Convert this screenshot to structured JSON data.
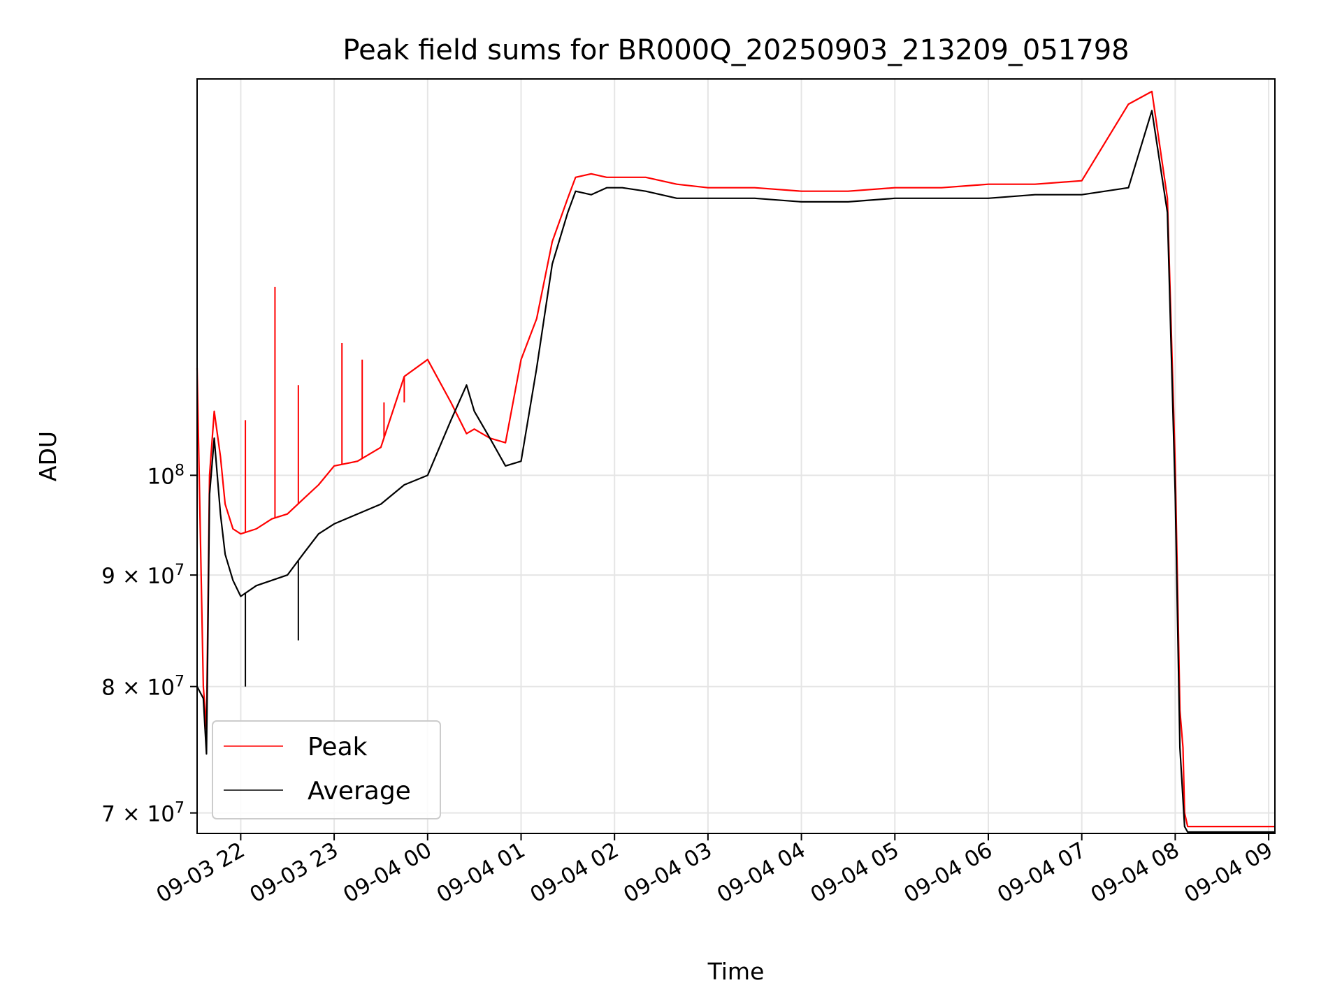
{
  "chart_data": {
    "type": "line",
    "title": "Peak field sums for BR000Q_20250903_213209_051798",
    "xlabel": "Time",
    "ylabel": "ADU",
    "y_scale": "log",
    "ylim": [
      68500000,
      152000000
    ],
    "xlim": [
      "2025-09-03 21:32",
      "2025-09-04 09:04"
    ],
    "grid": true,
    "legend_position": "lower-left",
    "x_tick_labels": [
      "09-03 22",
      "09-03 23",
      "09-04 00",
      "09-04 01",
      "09-04 02",
      "09-04 03",
      "09-04 04",
      "09-04 05",
      "09-04 06",
      "09-04 07",
      "09-04 08",
      "09-04 09"
    ],
    "x_ticks": [
      "2025-09-03 22:00",
      "2025-09-03 23:00",
      "2025-09-04 00:00",
      "2025-09-04 01:00",
      "2025-09-04 02:00",
      "2025-09-04 03:00",
      "2025-09-04 04:00",
      "2025-09-04 05:00",
      "2025-09-04 06:00",
      "2025-09-04 07:00",
      "2025-09-04 08:00",
      "2025-09-04 09:00"
    ],
    "y_ticks": [
      {
        "value": 70000000,
        "base": "7 × 10",
        "exp": "7"
      },
      {
        "value": 80000000,
        "base": "8 × 10",
        "exp": "7"
      },
      {
        "value": 90000000,
        "base": "9 × 10",
        "exp": "7"
      },
      {
        "value": 100000000,
        "base": "10",
        "exp": "8"
      }
    ],
    "series": [
      {
        "name": "Peak",
        "color": "#ff0000",
        "x": [
          "2025-09-03 21:32",
          "2025-09-03 21:36",
          "2025-09-03 21:38",
          "2025-09-03 21:40",
          "2025-09-03 21:43",
          "2025-09-03 21:47",
          "2025-09-03 21:50",
          "2025-09-03 21:55",
          "2025-09-03 22:00",
          "2025-09-03 22:10",
          "2025-09-03 22:20",
          "2025-09-03 22:30",
          "2025-09-03 22:40",
          "2025-09-03 22:50",
          "2025-09-03 23:00",
          "2025-09-03 23:15",
          "2025-09-03 23:30",
          "2025-09-03 23:45",
          "2025-09-04 00:00",
          "2025-09-04 00:15",
          "2025-09-04 00:25",
          "2025-09-04 00:30",
          "2025-09-04 00:40",
          "2025-09-04 00:50",
          "2025-09-04 01:00",
          "2025-09-04 01:10",
          "2025-09-04 01:20",
          "2025-09-04 01:30",
          "2025-09-04 01:35",
          "2025-09-04 01:45",
          "2025-09-04 01:55",
          "2025-09-04 02:05",
          "2025-09-04 02:20",
          "2025-09-04 02:40",
          "2025-09-04 03:00",
          "2025-09-04 03:30",
          "2025-09-04 04:00",
          "2025-09-04 04:30",
          "2025-09-04 05:00",
          "2025-09-04 05:30",
          "2025-09-04 06:00",
          "2025-09-04 06:30",
          "2025-09-04 07:00",
          "2025-09-04 07:30",
          "2025-09-04 07:45",
          "2025-09-04 07:55",
          "2025-09-04 08:00",
          "2025-09-04 08:03",
          "2025-09-04 08:05",
          "2025-09-04 08:06",
          "2025-09-04 08:08",
          "2025-09-04 09:02",
          "2025-09-04 09:04"
        ],
        "y": [
          112000000,
          80000000,
          76500000,
          100000000,
          107000000,
          102000000,
          97000000,
          94500000,
          94000000,
          94500000,
          95500000,
          96000000,
          97500000,
          99000000,
          101000000,
          101500000,
          103000000,
          111000000,
          113000000,
          108000000,
          104500000,
          105000000,
          104000000,
          103500000,
          113000000,
          118000000,
          128000000,
          134000000,
          137000000,
          137500000,
          137000000,
          137000000,
          137000000,
          136000000,
          135500000,
          135500000,
          135000000,
          135000000,
          135500000,
          135500000,
          136000000,
          136000000,
          136500000,
          148000000,
          150000000,
          134000000,
          101000000,
          78000000,
          75000000,
          70000000,
          69000000,
          69000000,
          69000000
        ],
        "spikes": [
          {
            "x": "2025-09-03 22:03",
            "y": 106000000
          },
          {
            "x": "2025-09-03 22:22",
            "y": 122000000
          },
          {
            "x": "2025-09-03 22:37",
            "y": 110000000
          },
          {
            "x": "2025-09-03 23:05",
            "y": 115000000
          },
          {
            "x": "2025-09-03 23:18",
            "y": 113000000
          },
          {
            "x": "2025-09-03 23:32",
            "y": 108000000
          },
          {
            "x": "2025-09-03 23:45",
            "y": 108000000
          }
        ]
      },
      {
        "name": "Average",
        "color": "#000000",
        "x": [
          "2025-09-03 21:32",
          "2025-09-03 21:36",
          "2025-09-03 21:38",
          "2025-09-03 21:40",
          "2025-09-03 21:43",
          "2025-09-03 21:47",
          "2025-09-03 21:50",
          "2025-09-03 21:55",
          "2025-09-03 22:00",
          "2025-09-03 22:10",
          "2025-09-03 22:20",
          "2025-09-03 22:30",
          "2025-09-03 22:40",
          "2025-09-03 22:50",
          "2025-09-03 23:00",
          "2025-09-03 23:15",
          "2025-09-03 23:30",
          "2025-09-03 23:45",
          "2025-09-04 00:00",
          "2025-09-04 00:15",
          "2025-09-04 00:25",
          "2025-09-04 00:30",
          "2025-09-04 00:40",
          "2025-09-04 00:50",
          "2025-09-04 01:00",
          "2025-09-04 01:10",
          "2025-09-04 01:20",
          "2025-09-04 01:30",
          "2025-09-04 01:35",
          "2025-09-04 01:45",
          "2025-09-04 01:55",
          "2025-09-04 02:05",
          "2025-09-04 02:20",
          "2025-09-04 02:40",
          "2025-09-04 03:00",
          "2025-09-04 03:30",
          "2025-09-04 04:00",
          "2025-09-04 04:30",
          "2025-09-04 05:00",
          "2025-09-04 05:30",
          "2025-09-04 06:00",
          "2025-09-04 06:30",
          "2025-09-04 07:00",
          "2025-09-04 07:30",
          "2025-09-04 07:45",
          "2025-09-04 07:55",
          "2025-09-04 08:00",
          "2025-09-04 08:03",
          "2025-09-04 08:05",
          "2025-09-04 08:06",
          "2025-09-04 08:08",
          "2025-09-04 09:02",
          "2025-09-04 09:04"
        ],
        "y": [
          80000000,
          79000000,
          74500000,
          98000000,
          104000000,
          96000000,
          92000000,
          89500000,
          88000000,
          89000000,
          89500000,
          90000000,
          92000000,
          94000000,
          95000000,
          96000000,
          97000000,
          99000000,
          100000000,
          106000000,
          110000000,
          107000000,
          104000000,
          101000000,
          101500000,
          112000000,
          125000000,
          132000000,
          135000000,
          134500000,
          135500000,
          135500000,
          135000000,
          134000000,
          134000000,
          134000000,
          133500000,
          133500000,
          134000000,
          134000000,
          134000000,
          134500000,
          134500000,
          135500000,
          147000000,
          132000000,
          98000000,
          75000000,
          71000000,
          69000000,
          68600000,
          68600000,
          68600000
        ],
        "spikes": [
          {
            "x": "2025-09-03 22:03",
            "y": 80000000
          },
          {
            "x": "2025-09-03 22:37",
            "y": 84000000
          }
        ]
      }
    ]
  }
}
